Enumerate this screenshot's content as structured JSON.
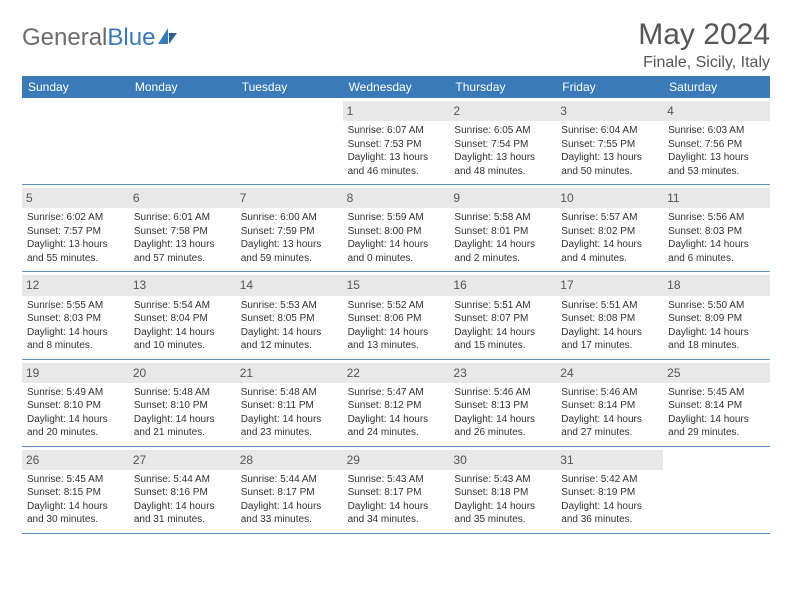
{
  "logo": {
    "textGray": "General",
    "textBlue": "Blue"
  },
  "title": "May 2024",
  "location": "Finale, Sicily, Italy",
  "colors": {
    "headerBar": "#3a7ab8",
    "headerText": "#ffffff",
    "dayNumBg": "#e8e8e8",
    "dayNumText": "#555555",
    "bodyText": "#333333",
    "rowBorder": "#5a8fbf",
    "titleText": "#565656",
    "logoGray": "#6b6b6b"
  },
  "weekdays": [
    "Sunday",
    "Monday",
    "Tuesday",
    "Wednesday",
    "Thursday",
    "Friday",
    "Saturday"
  ],
  "weeks": [
    [
      null,
      null,
      null,
      {
        "n": "1",
        "sr": "Sunrise: 6:07 AM",
        "ss": "Sunset: 7:53 PM",
        "d1": "Daylight: 13 hours",
        "d2": "and 46 minutes."
      },
      {
        "n": "2",
        "sr": "Sunrise: 6:05 AM",
        "ss": "Sunset: 7:54 PM",
        "d1": "Daylight: 13 hours",
        "d2": "and 48 minutes."
      },
      {
        "n": "3",
        "sr": "Sunrise: 6:04 AM",
        "ss": "Sunset: 7:55 PM",
        "d1": "Daylight: 13 hours",
        "d2": "and 50 minutes."
      },
      {
        "n": "4",
        "sr": "Sunrise: 6:03 AM",
        "ss": "Sunset: 7:56 PM",
        "d1": "Daylight: 13 hours",
        "d2": "and 53 minutes."
      }
    ],
    [
      {
        "n": "5",
        "sr": "Sunrise: 6:02 AM",
        "ss": "Sunset: 7:57 PM",
        "d1": "Daylight: 13 hours",
        "d2": "and 55 minutes."
      },
      {
        "n": "6",
        "sr": "Sunrise: 6:01 AM",
        "ss": "Sunset: 7:58 PM",
        "d1": "Daylight: 13 hours",
        "d2": "and 57 minutes."
      },
      {
        "n": "7",
        "sr": "Sunrise: 6:00 AM",
        "ss": "Sunset: 7:59 PM",
        "d1": "Daylight: 13 hours",
        "d2": "and 59 minutes."
      },
      {
        "n": "8",
        "sr": "Sunrise: 5:59 AM",
        "ss": "Sunset: 8:00 PM",
        "d1": "Daylight: 14 hours",
        "d2": "and 0 minutes."
      },
      {
        "n": "9",
        "sr": "Sunrise: 5:58 AM",
        "ss": "Sunset: 8:01 PM",
        "d1": "Daylight: 14 hours",
        "d2": "and 2 minutes."
      },
      {
        "n": "10",
        "sr": "Sunrise: 5:57 AM",
        "ss": "Sunset: 8:02 PM",
        "d1": "Daylight: 14 hours",
        "d2": "and 4 minutes."
      },
      {
        "n": "11",
        "sr": "Sunrise: 5:56 AM",
        "ss": "Sunset: 8:03 PM",
        "d1": "Daylight: 14 hours",
        "d2": "and 6 minutes."
      }
    ],
    [
      {
        "n": "12",
        "sr": "Sunrise: 5:55 AM",
        "ss": "Sunset: 8:03 PM",
        "d1": "Daylight: 14 hours",
        "d2": "and 8 minutes."
      },
      {
        "n": "13",
        "sr": "Sunrise: 5:54 AM",
        "ss": "Sunset: 8:04 PM",
        "d1": "Daylight: 14 hours",
        "d2": "and 10 minutes."
      },
      {
        "n": "14",
        "sr": "Sunrise: 5:53 AM",
        "ss": "Sunset: 8:05 PM",
        "d1": "Daylight: 14 hours",
        "d2": "and 12 minutes."
      },
      {
        "n": "15",
        "sr": "Sunrise: 5:52 AM",
        "ss": "Sunset: 8:06 PM",
        "d1": "Daylight: 14 hours",
        "d2": "and 13 minutes."
      },
      {
        "n": "16",
        "sr": "Sunrise: 5:51 AM",
        "ss": "Sunset: 8:07 PM",
        "d1": "Daylight: 14 hours",
        "d2": "and 15 minutes."
      },
      {
        "n": "17",
        "sr": "Sunrise: 5:51 AM",
        "ss": "Sunset: 8:08 PM",
        "d1": "Daylight: 14 hours",
        "d2": "and 17 minutes."
      },
      {
        "n": "18",
        "sr": "Sunrise: 5:50 AM",
        "ss": "Sunset: 8:09 PM",
        "d1": "Daylight: 14 hours",
        "d2": "and 18 minutes."
      }
    ],
    [
      {
        "n": "19",
        "sr": "Sunrise: 5:49 AM",
        "ss": "Sunset: 8:10 PM",
        "d1": "Daylight: 14 hours",
        "d2": "and 20 minutes."
      },
      {
        "n": "20",
        "sr": "Sunrise: 5:48 AM",
        "ss": "Sunset: 8:10 PM",
        "d1": "Daylight: 14 hours",
        "d2": "and 21 minutes."
      },
      {
        "n": "21",
        "sr": "Sunrise: 5:48 AM",
        "ss": "Sunset: 8:11 PM",
        "d1": "Daylight: 14 hours",
        "d2": "and 23 minutes."
      },
      {
        "n": "22",
        "sr": "Sunrise: 5:47 AM",
        "ss": "Sunset: 8:12 PM",
        "d1": "Daylight: 14 hours",
        "d2": "and 24 minutes."
      },
      {
        "n": "23",
        "sr": "Sunrise: 5:46 AM",
        "ss": "Sunset: 8:13 PM",
        "d1": "Daylight: 14 hours",
        "d2": "and 26 minutes."
      },
      {
        "n": "24",
        "sr": "Sunrise: 5:46 AM",
        "ss": "Sunset: 8:14 PM",
        "d1": "Daylight: 14 hours",
        "d2": "and 27 minutes."
      },
      {
        "n": "25",
        "sr": "Sunrise: 5:45 AM",
        "ss": "Sunset: 8:14 PM",
        "d1": "Daylight: 14 hours",
        "d2": "and 29 minutes."
      }
    ],
    [
      {
        "n": "26",
        "sr": "Sunrise: 5:45 AM",
        "ss": "Sunset: 8:15 PM",
        "d1": "Daylight: 14 hours",
        "d2": "and 30 minutes."
      },
      {
        "n": "27",
        "sr": "Sunrise: 5:44 AM",
        "ss": "Sunset: 8:16 PM",
        "d1": "Daylight: 14 hours",
        "d2": "and 31 minutes."
      },
      {
        "n": "28",
        "sr": "Sunrise: 5:44 AM",
        "ss": "Sunset: 8:17 PM",
        "d1": "Daylight: 14 hours",
        "d2": "and 33 minutes."
      },
      {
        "n": "29",
        "sr": "Sunrise: 5:43 AM",
        "ss": "Sunset: 8:17 PM",
        "d1": "Daylight: 14 hours",
        "d2": "and 34 minutes."
      },
      {
        "n": "30",
        "sr": "Sunrise: 5:43 AM",
        "ss": "Sunset: 8:18 PM",
        "d1": "Daylight: 14 hours",
        "d2": "and 35 minutes."
      },
      {
        "n": "31",
        "sr": "Sunrise: 5:42 AM",
        "ss": "Sunset: 8:19 PM",
        "d1": "Daylight: 14 hours",
        "d2": "and 36 minutes."
      },
      null
    ]
  ]
}
